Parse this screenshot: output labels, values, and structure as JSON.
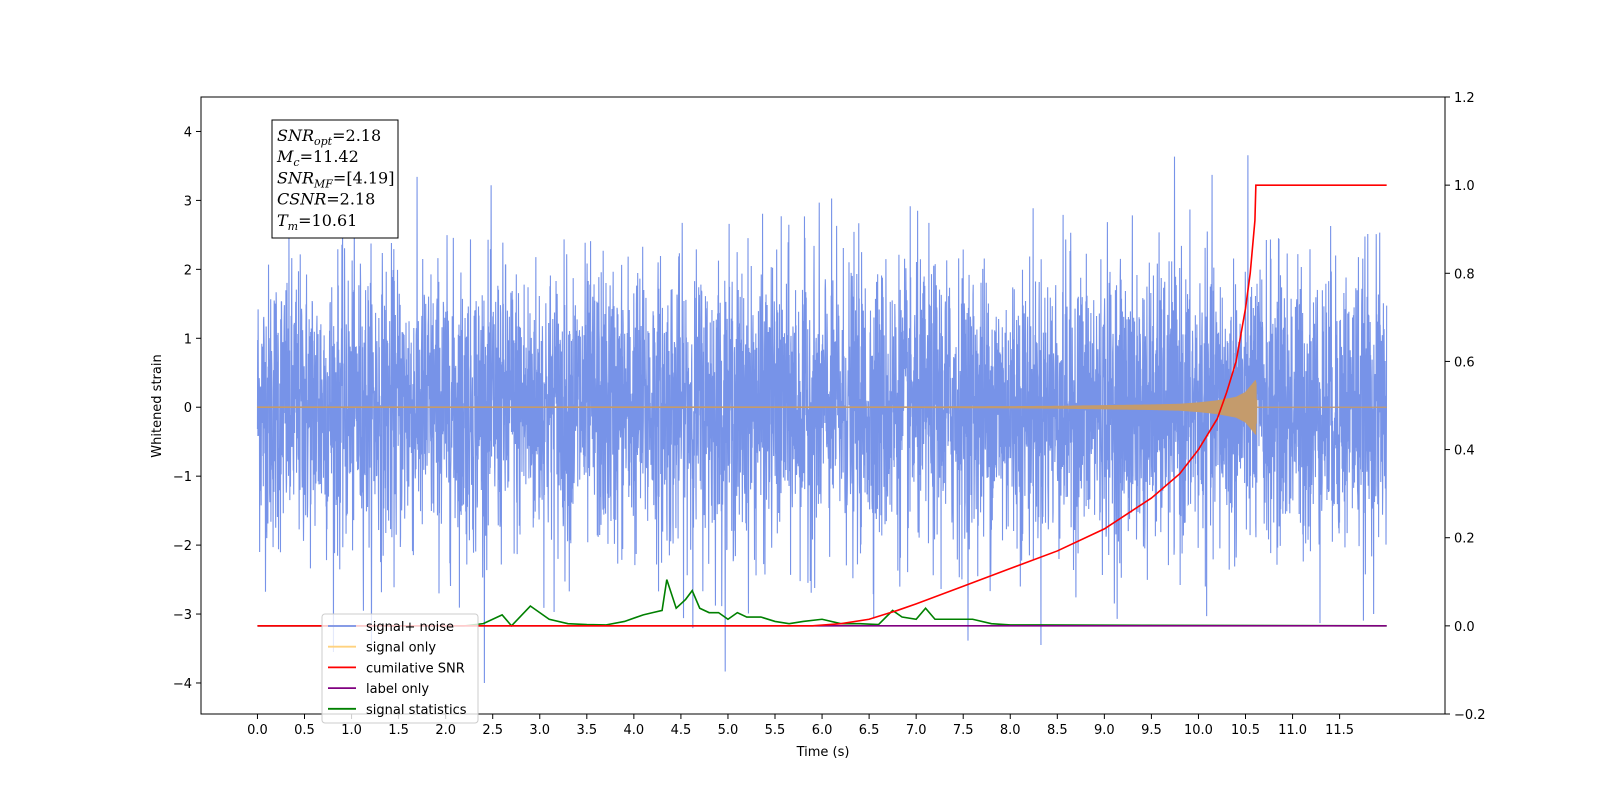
{
  "chart_data": {
    "type": "line",
    "title": "",
    "xlabel": "Time (s)",
    "ylabel": "Whitened strain",
    "xlim": [
      -0.6,
      12.62
    ],
    "ylim": [
      -4.45,
      4.5
    ],
    "y2lim": [
      -0.2,
      1.2
    ],
    "x_ticks": [
      0.0,
      0.5,
      1.0,
      1.5,
      2.0,
      2.5,
      3.0,
      3.5,
      4.0,
      4.5,
      5.0,
      5.5,
      6.0,
      6.5,
      7.0,
      7.5,
      8.0,
      8.5,
      9.0,
      9.5,
      10.0,
      10.5,
      11.0,
      11.5
    ],
    "x_tick_labels": [
      "0.0",
      "0.5",
      "1.0",
      "1.5",
      "2.0",
      "2.5",
      "3.0",
      "3.5",
      "4.0",
      "4.5",
      "5.0",
      "5.5",
      "6.0",
      "6.5",
      "7.0",
      "7.5",
      "8.0",
      "8.5",
      "9.0",
      "9.5",
      "10.0",
      "10.5",
      "11.0",
      "11.5"
    ],
    "y_ticks": [
      4,
      3,
      2,
      1,
      0,
      -1,
      -2,
      -3,
      -4
    ],
    "y_tick_labels": [
      "4",
      "3",
      "2",
      "1",
      "0",
      "−1",
      "−2",
      "−3",
      "−4"
    ],
    "y2_ticks": [
      1.2,
      1.0,
      0.8,
      0.6,
      0.4,
      0.2,
      0.0,
      -0.2
    ],
    "y2_tick_labels": [
      "1.2",
      "1.0",
      "0.8",
      "0.6",
      "0.4",
      "0.2",
      "0.0",
      "−0.2"
    ],
    "grid": false,
    "legend_position": "lower-left",
    "series": [
      {
        "name": "signal+ noise",
        "axis": "left",
        "color": "#7793e8",
        "x_range": [
          0.0,
          12.0
        ],
        "typical_amplitude": 1.6,
        "peak_max": 4.1,
        "peak_min": -4.0
      },
      {
        "name": "signal only",
        "axis": "left",
        "color": "#c49b6c",
        "x": [
          0.0,
          6.0,
          7.0,
          8.0,
          8.5,
          9.0,
          9.5,
          9.8,
          10.0,
          10.2,
          10.4,
          10.5,
          10.58,
          10.61,
          10.62,
          12.0
        ],
        "envelope": [
          0.01,
          0.01,
          0.01,
          0.015,
          0.02,
          0.03,
          0.04,
          0.05,
          0.07,
          0.1,
          0.15,
          0.22,
          0.35,
          0.4,
          0.0,
          0.0
        ]
      },
      {
        "name": "cumilative SNR",
        "axis": "right",
        "color": "#ff0000",
        "x": [
          0.0,
          5.9,
          6.2,
          6.5,
          6.8,
          7.0,
          7.5,
          8.0,
          8.5,
          9.0,
          9.5,
          9.8,
          10.0,
          10.2,
          10.3,
          10.4,
          10.5,
          10.55,
          10.6,
          10.61,
          12.0
        ],
        "y": [
          0.0,
          0.0,
          0.005,
          0.015,
          0.035,
          0.05,
          0.09,
          0.13,
          0.17,
          0.22,
          0.29,
          0.345,
          0.4,
          0.47,
          0.53,
          0.6,
          0.72,
          0.8,
          0.92,
          1.0,
          1.0
        ]
      },
      {
        "name": "label only",
        "axis": "right",
        "color": "#800080",
        "x": [
          0.0,
          12.0
        ],
        "y": [
          0.0,
          0.0
        ]
      },
      {
        "name": "signal statistics",
        "axis": "right",
        "color": "#008000",
        "x": [
          0.0,
          2.2,
          2.4,
          2.6,
          2.7,
          2.9,
          3.1,
          3.3,
          3.5,
          3.7,
          3.9,
          4.1,
          4.2,
          4.3,
          4.35,
          4.45,
          4.55,
          4.62,
          4.7,
          4.8,
          4.9,
          5.0,
          5.1,
          5.2,
          5.35,
          5.5,
          5.65,
          5.8,
          6.0,
          6.2,
          6.4,
          6.6,
          6.75,
          6.85,
          7.0,
          7.1,
          7.2,
          7.4,
          7.6,
          7.8,
          8.0,
          8.3,
          12.0
        ],
        "y": [
          0.0,
          0.0,
          0.005,
          0.025,
          0.0,
          0.045,
          0.015,
          0.005,
          0.003,
          0.002,
          0.01,
          0.025,
          0.03,
          0.035,
          0.105,
          0.04,
          0.06,
          0.08,
          0.04,
          0.03,
          0.03,
          0.015,
          0.03,
          0.02,
          0.02,
          0.01,
          0.005,
          0.01,
          0.015,
          0.005,
          0.005,
          0.003,
          0.035,
          0.02,
          0.015,
          0.04,
          0.015,
          0.015,
          0.015,
          0.005,
          0.002,
          0.002,
          0.0
        ]
      }
    ],
    "annotations": [
      {
        "sym": "SNR",
        "sub": "opt",
        "rest": "=2.18"
      },
      {
        "sym": "M",
        "sub": "c",
        "rest": "=11.42"
      },
      {
        "sym": "SNR",
        "sub": "MF",
        "rest": "=[4.19]"
      },
      {
        "sym": "CSNR",
        "sub": "",
        "rest": "=2.18"
      },
      {
        "sym": "T",
        "sub": "m",
        "rest": "=10.61"
      }
    ]
  }
}
